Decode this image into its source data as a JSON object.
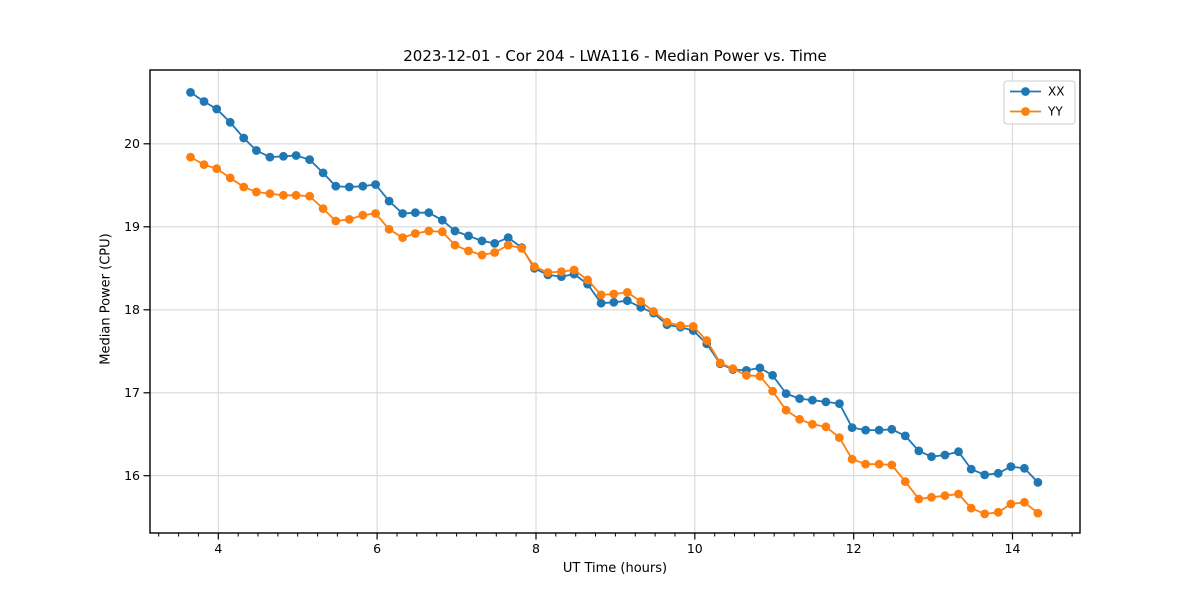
{
  "page": {
    "background": "#ffffff"
  },
  "chart_data": {
    "type": "line",
    "title": "2023-12-01 - Cor 204 - LWA116 - Median Power vs. Time",
    "xlabel": "UT Time (hours)",
    "ylabel": "Median Power (CPU)",
    "xlim": [
      3.14,
      14.85
    ],
    "ylim": [
      15.31,
      20.89
    ],
    "xticks": [
      4,
      6,
      8,
      10,
      12,
      14
    ],
    "yticks": [
      16,
      17,
      18,
      19,
      20
    ],
    "minor_tick_step_x": 0.25,
    "grid": true,
    "grid_color": "#d9d9d9",
    "axis_color": "#000000",
    "legend": {
      "position": "upper right",
      "entries": [
        "XX",
        "YY"
      ]
    },
    "x": [
      3.65,
      3.82,
      3.98,
      4.15,
      4.32,
      4.48,
      4.65,
      4.82,
      4.98,
      5.15,
      5.32,
      5.48,
      5.65,
      5.82,
      5.98,
      6.15,
      6.32,
      6.48,
      6.65,
      6.82,
      6.98,
      7.15,
      7.32,
      7.48,
      7.65,
      7.82,
      7.98,
      8.15,
      8.32,
      8.48,
      8.65,
      8.82,
      8.98,
      9.15,
      9.32,
      9.48,
      9.65,
      9.82,
      9.98,
      10.15,
      10.32,
      10.48,
      10.65,
      10.82,
      10.98,
      11.15,
      11.32,
      11.48,
      11.65,
      11.82,
      11.98,
      12.15,
      12.32,
      12.48,
      12.65,
      12.82,
      12.98,
      13.15,
      13.32,
      13.48,
      13.65,
      13.82,
      13.98,
      14.15,
      14.32
    ],
    "series": [
      {
        "name": "XX",
        "color": "#1f77b4",
        "marker": "circle",
        "values": [
          20.62,
          20.51,
          20.42,
          20.26,
          20.07,
          19.92,
          19.84,
          19.85,
          19.86,
          19.81,
          19.65,
          19.49,
          19.48,
          19.49,
          19.51,
          19.31,
          19.16,
          19.17,
          19.17,
          19.08,
          18.95,
          18.89,
          18.83,
          18.8,
          18.87,
          18.75,
          18.5,
          18.42,
          18.4,
          18.43,
          18.31,
          18.08,
          18.09,
          18.11,
          18.03,
          17.96,
          17.82,
          17.79,
          17.75,
          17.59,
          17.35,
          17.28,
          17.27,
          17.3,
          17.21,
          16.99,
          16.93,
          16.91,
          16.89,
          16.87,
          16.58,
          16.55,
          16.55,
          16.56,
          16.48,
          16.3,
          16.23,
          16.25,
          16.29,
          16.08,
          16.01,
          16.03,
          16.11,
          16.09,
          15.92
        ]
      },
      {
        "name": "YY",
        "color": "#ff7f0e",
        "marker": "circle",
        "values": [
          19.84,
          19.75,
          19.7,
          19.59,
          19.48,
          19.42,
          19.4,
          19.38,
          19.38,
          19.37,
          19.22,
          19.07,
          19.09,
          19.14,
          19.16,
          18.97,
          18.87,
          18.92,
          18.95,
          18.94,
          18.78,
          18.71,
          18.66,
          18.69,
          18.78,
          18.74,
          18.52,
          18.45,
          18.46,
          18.48,
          18.36,
          18.18,
          18.19,
          18.21,
          18.1,
          17.98,
          17.85,
          17.81,
          17.8,
          17.63,
          17.36,
          17.29,
          17.21,
          17.2,
          17.02,
          16.79,
          16.68,
          16.62,
          16.59,
          16.46,
          16.2,
          16.14,
          16.14,
          16.13,
          15.93,
          15.72,
          15.74,
          15.76,
          15.78,
          15.61,
          15.54,
          15.56,
          15.66,
          15.68,
          15.55
        ]
      }
    ]
  }
}
